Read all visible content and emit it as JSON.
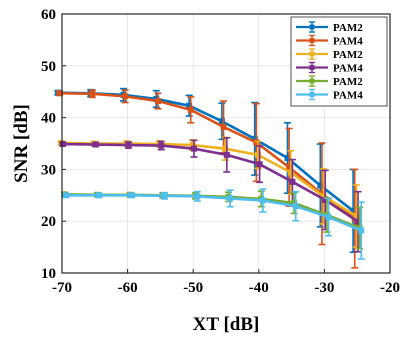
{
  "chart_data": {
    "type": "line",
    "xlabel": "XT [dB]",
    "ylabel": "SNR [dB]",
    "xlim": [
      -70,
      -20
    ],
    "ylim": [
      10,
      60
    ],
    "xticks": [
      -70,
      -60,
      -50,
      -40,
      -30,
      -20
    ],
    "yticks": [
      10,
      20,
      30,
      40,
      50,
      60
    ],
    "grid": true,
    "legend_position": "top-right",
    "x": [
      -70,
      -65,
      -60,
      -55,
      -50,
      -45,
      -40,
      -35,
      -30,
      -25
    ],
    "series": [
      {
        "name": "PAM2",
        "color": "#0072BD",
        "y": [
          44.8,
          44.7,
          44.4,
          43.6,
          42.3,
          39.3,
          35.9,
          32.2,
          26.9,
          22.0
        ],
        "err": [
          0.4,
          0.7,
          1.2,
          1.6,
          2.0,
          3.5,
          7.0,
          6.8,
          8.0,
          8.0
        ]
      },
      {
        "name": "PAM4",
        "color": "#D95319",
        "y": [
          44.7,
          44.6,
          44.1,
          43.2,
          41.5,
          38.2,
          35.2,
          30.4,
          25.3,
          20.5
        ],
        "err": [
          0.4,
          0.7,
          1.2,
          1.5,
          2.5,
          5.0,
          7.5,
          7.5,
          9.8,
          9.5
        ]
      },
      {
        "name": "PAM2",
        "color": "#EDB120",
        "y": [
          35.1,
          35.0,
          35.0,
          34.9,
          34.7,
          34.0,
          32.8,
          29.4,
          24.8,
          21.0
        ],
        "err": [
          0.3,
          0.4,
          0.5,
          0.6,
          1.0,
          2.2,
          2.6,
          4.2,
          5.3,
          6.0
        ]
      },
      {
        "name": "PAM4",
        "color": "#7E2F8E",
        "y": [
          34.9,
          34.8,
          34.7,
          34.6,
          34.0,
          32.8,
          31.0,
          27.6,
          24.1,
          19.9
        ],
        "err": [
          0.3,
          0.4,
          0.6,
          0.8,
          1.6,
          3.3,
          3.5,
          4.3,
          5.7,
          5.8
        ]
      },
      {
        "name": "PAM2",
        "color": "#77AC30",
        "y": [
          25.2,
          25.1,
          25.1,
          25.0,
          24.9,
          24.7,
          24.3,
          23.5,
          21.2,
          18.7
        ],
        "err": [
          0.3,
          0.3,
          0.4,
          0.5,
          0.6,
          0.9,
          1.5,
          2.0,
          3.3,
          4.0
        ]
      },
      {
        "name": "PAM4",
        "color": "#4DBEEE",
        "y": [
          25.0,
          25.0,
          25.0,
          24.9,
          24.8,
          24.4,
          24.0,
          22.9,
          20.8,
          18.2
        ],
        "err": [
          0.3,
          0.4,
          0.4,
          0.6,
          0.9,
          1.6,
          2.2,
          2.8,
          3.6,
          5.5
        ]
      }
    ]
  }
}
